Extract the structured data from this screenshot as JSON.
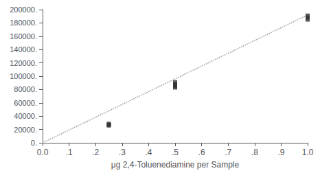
{
  "chart_data": {
    "type": "scatter",
    "xlabel": "μg 2,4-Toluenediamine per Sample",
    "xlim": [
      0.0,
      1.0
    ],
    "ylim": [
      0,
      200000
    ],
    "xticks": [
      {
        "value": 0.0,
        "label": "0.0"
      },
      {
        "value": 0.1,
        "label": ".1"
      },
      {
        "value": 0.2,
        "label": ".2"
      },
      {
        "value": 0.3,
        "label": ".3"
      },
      {
        "value": 0.4,
        "label": ".4"
      },
      {
        "value": 0.5,
        "label": ".5"
      },
      {
        "value": 0.6,
        "label": ".6"
      },
      {
        "value": 0.7,
        "label": ".7"
      },
      {
        "value": 0.8,
        "label": ".8"
      },
      {
        "value": 0.9,
        "label": ".9"
      },
      {
        "value": 1.0,
        "label": "1.0"
      }
    ],
    "yticks": [
      {
        "value": 0,
        "label": "0."
      },
      {
        "value": 20000,
        "label": "20000."
      },
      {
        "value": 40000,
        "label": "40000."
      },
      {
        "value": 60000,
        "label": "60000."
      },
      {
        "value": 80000,
        "label": "80000."
      },
      {
        "value": 100000,
        "label": "100000."
      },
      {
        "value": 120000,
        "label": "120000."
      },
      {
        "value": 140000,
        "label": "140000."
      },
      {
        "value": 160000,
        "label": "160000."
      },
      {
        "value": 180000,
        "label": "180000."
      },
      {
        "value": 200000,
        "label": "200000."
      }
    ],
    "grid": false,
    "series": [
      {
        "type": "line",
        "color": "#999999",
        "line_style": "dotted",
        "x": [
          0.0,
          1.0
        ],
        "values": [
          0,
          192000
        ]
      },
      {
        "type": "scatter",
        "color": "#333333",
        "marker": "square",
        "x": [
          0.25,
          0.25,
          0.25,
          0.5,
          0.5,
          0.5,
          0.5,
          0.5,
          1.0,
          1.0,
          1.0
        ],
        "values": [
          27000,
          28500,
          26000,
          88000,
          85000,
          83000,
          91000,
          87000,
          191000,
          188000,
          185000
        ]
      }
    ]
  }
}
